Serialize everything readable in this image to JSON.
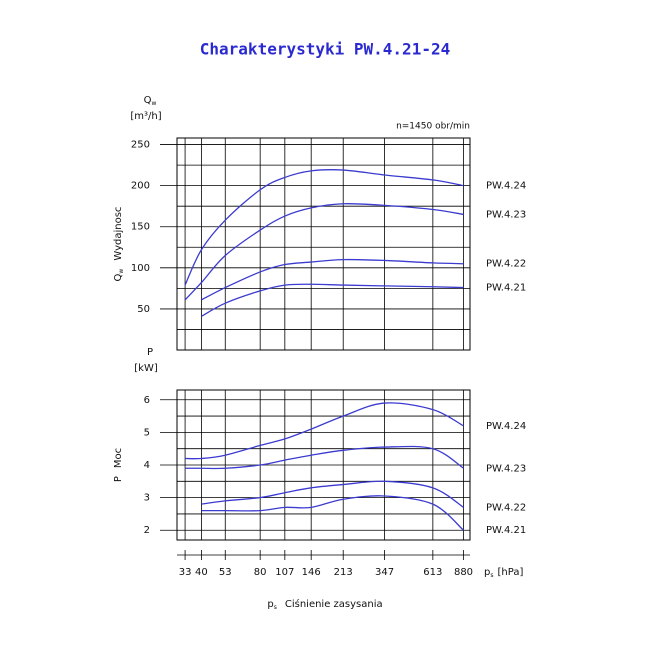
{
  "chart_data": {
    "type": "line",
    "title": "Charakterystyki PW.4.21-24",
    "annotation": "n=1450 obr/min",
    "xscale": "log",
    "xlim": [
      30,
      950
    ],
    "x": [
      33,
      40,
      53,
      80,
      107,
      146,
      213,
      347,
      613,
      880
    ],
    "xticks": [
      33,
      40,
      53,
      80,
      107,
      146,
      213,
      347,
      613,
      880
    ],
    "xsymbol": "p",
    "xsymbol_sub": "s",
    "xunit": "[hPa]",
    "xlabel": "Ciśnienie zasysania",
    "grid": true,
    "panels": [
      {
        "ysymbol": "Q",
        "ysymbol_sub": "w",
        "yunit": "[m³/h]",
        "ylabel": "Wydajnosc",
        "ylim": [
          0,
          258
        ],
        "yticks": [
          50,
          100,
          150,
          200,
          250
        ],
        "yminor": [
          25,
          75,
          125,
          175,
          225
        ],
        "series": [
          {
            "name": "PW.4.24",
            "color": "#3b3bd0",
            "values": [
              79,
              122,
              158,
              195,
              210,
              218,
              219,
              213,
              207,
              200
            ]
          },
          {
            "name": "PW.4.23",
            "color": "#3b3bd0",
            "values": [
              61,
              82,
              115,
              146,
              163,
              173,
              178,
              176,
              171,
              165
            ]
          },
          {
            "name": "PW.4.22",
            "color": "#3b3bd0",
            "values": [
              null,
              61,
              76,
              95,
              104,
              107,
              110,
              109,
              106,
              105
            ]
          },
          {
            "name": "PW.4.21",
            "color": "#3b3bd0",
            "values": [
              null,
              41,
              57,
              72,
              79,
              80,
              79,
              78,
              77,
              76
            ]
          }
        ]
      },
      {
        "ysymbol": "P",
        "yunit": "[kW]",
        "ylabel": "Moc",
        "ylim": [
          1.7,
          6.3
        ],
        "yticks": [
          2,
          3,
          4,
          5,
          6
        ],
        "yminor": [
          2.5,
          3.5,
          4.5,
          5.5
        ],
        "series": [
          {
            "name": "PW.4.24",
            "color": "#3b3bd0",
            "values": [
              4.2,
              4.2,
              4.3,
              4.6,
              4.8,
              5.1,
              5.5,
              5.9,
              5.7,
              5.2
            ]
          },
          {
            "name": "PW.4.23",
            "color": "#3b3bd0",
            "values": [
              3.9,
              3.9,
              3.9,
              4.0,
              4.15,
              4.3,
              4.45,
              4.55,
              4.5,
              3.9
            ]
          },
          {
            "name": "PW.4.22",
            "color": "#3b3bd0",
            "values": [
              null,
              2.8,
              2.9,
              3.0,
              3.15,
              3.3,
              3.4,
              3.5,
              3.3,
              2.7
            ]
          },
          {
            "name": "PW.4.21",
            "color": "#3b3bd0",
            "values": [
              null,
              2.6,
              2.6,
              2.6,
              2.7,
              2.7,
              2.95,
              3.05,
              2.8,
              2.0
            ]
          }
        ]
      }
    ]
  }
}
